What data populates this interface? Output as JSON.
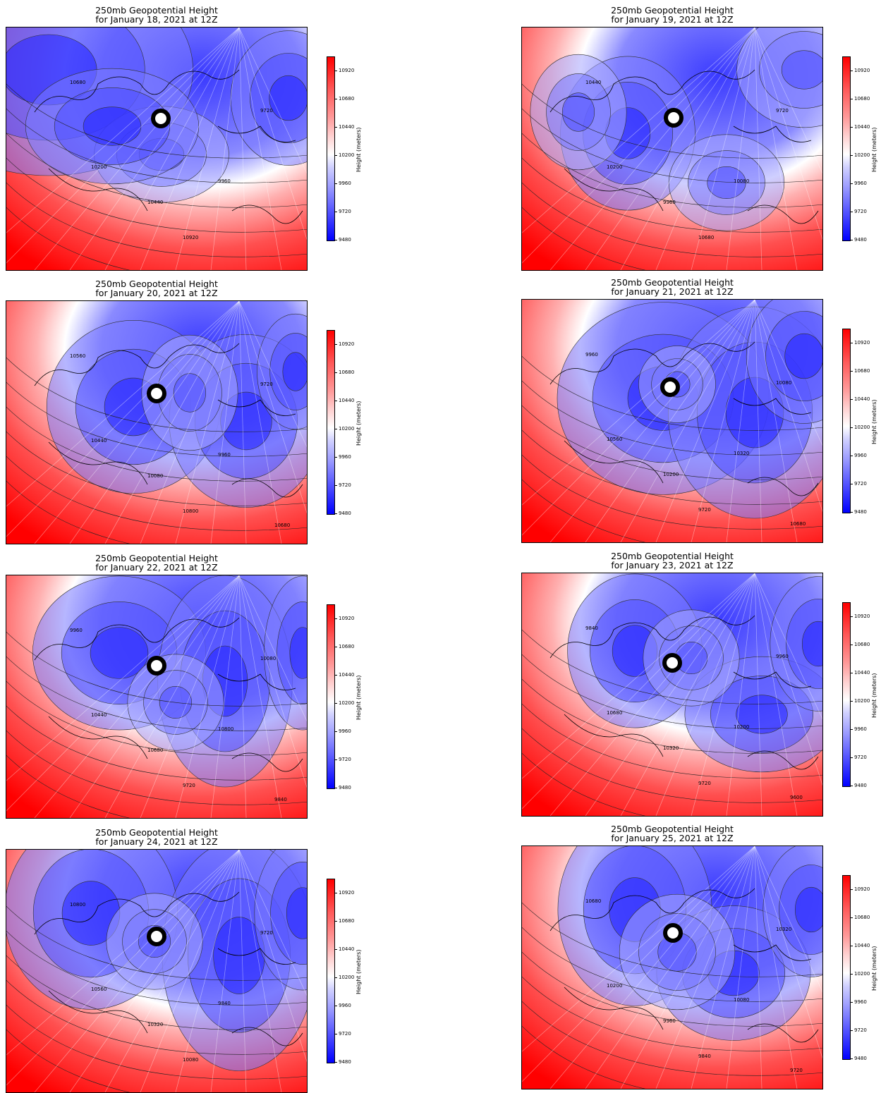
{
  "chart_data": [
    {
      "type": "heatmap",
      "title": "250mb Geopotential Height",
      "subtitle": "for January 18, 2021 at 12Z",
      "colorbar_label": "Height (meters)",
      "colorbar_ticks": [
        10920,
        10680,
        10440,
        10200,
        9960,
        9720,
        9480
      ],
      "contour_labels": [
        "10200",
        "10440",
        "9960",
        "9720",
        "10680",
        "10920"
      ],
      "colors": {
        "low": "#0000ff",
        "mid": "#ffffff",
        "high": "#ff0000"
      }
    },
    {
      "type": "heatmap",
      "title": "250mb Geopotential Height",
      "subtitle": "for January 19, 2021 at 12Z",
      "colorbar_label": "Height (meters)",
      "colorbar_ticks": [
        10920,
        10680,
        10440,
        10200,
        9960,
        9720,
        9480
      ],
      "contour_labels": [
        "10200",
        "9960",
        "10080",
        "9720",
        "10440",
        "10680"
      ],
      "colors": {
        "low": "#0000ff",
        "mid": "#ffffff",
        "high": "#ff0000"
      }
    },
    {
      "type": "heatmap",
      "title": "250mb Geopotential Height",
      "subtitle": "for January 20, 2021 at 12Z",
      "colorbar_label": "Height (meters)",
      "colorbar_ticks": [
        10920,
        10680,
        10440,
        10200,
        9960,
        9720,
        9480
      ],
      "contour_labels": [
        "10440",
        "10080",
        "9960",
        "9720",
        "10560",
        "10800",
        "10680"
      ],
      "colors": {
        "low": "#0000ff",
        "mid": "#ffffff",
        "high": "#ff0000"
      }
    },
    {
      "type": "heatmap",
      "title": "250mb Geopotential Height",
      "subtitle": "for January 21, 2021 at 12Z",
      "colorbar_label": "Height (meters)",
      "colorbar_ticks": [
        10920,
        10680,
        10440,
        10200,
        9960,
        9720,
        9480
      ],
      "contour_labels": [
        "10560",
        "10200",
        "10320",
        "10080",
        "9960",
        "9720",
        "10680"
      ],
      "colors": {
        "low": "#0000ff",
        "mid": "#ffffff",
        "high": "#ff0000"
      }
    },
    {
      "type": "heatmap",
      "title": "250mb Geopotential Height",
      "subtitle": "for January 22, 2021 at 12Z",
      "colorbar_label": "Height (meters)",
      "colorbar_ticks": [
        10920,
        10680,
        10440,
        10200,
        9960,
        9720,
        9480
      ],
      "contour_labels": [
        "10440",
        "10680",
        "10800",
        "10080",
        "9960",
        "9720",
        "9840"
      ],
      "colors": {
        "low": "#0000ff",
        "mid": "#ffffff",
        "high": "#ff0000"
      }
    },
    {
      "type": "heatmap",
      "title": "250mb Geopotential Height",
      "subtitle": "for January 23, 2021 at 12Z",
      "colorbar_label": "Height (meters)",
      "colorbar_ticks": [
        10920,
        10680,
        10440,
        10200,
        9960,
        9720,
        9480
      ],
      "contour_labels": [
        "10680",
        "10320",
        "10200",
        "9960",
        "9840",
        "9720",
        "9600"
      ],
      "colors": {
        "low": "#0000ff",
        "mid": "#ffffff",
        "high": "#ff0000"
      }
    },
    {
      "type": "heatmap",
      "title": "250mb Geopotential Height",
      "subtitle": "for January 24, 2021 at 12Z",
      "colorbar_label": "Height (meters)",
      "colorbar_ticks": [
        10920,
        10680,
        10440,
        10200,
        9960,
        9720,
        9480
      ],
      "contour_labels": [
        "10560",
        "10320",
        "9840",
        "9720",
        "10800",
        "10080"
      ],
      "colors": {
        "low": "#0000ff",
        "mid": "#ffffff",
        "high": "#ff0000"
      }
    },
    {
      "type": "heatmap",
      "title": "250mb Geopotential Height",
      "subtitle": "for January 25, 2021 at 12Z",
      "colorbar_label": "Height (meters)",
      "colorbar_ticks": [
        10920,
        10680,
        10440,
        10200,
        9960,
        9720,
        9480
      ],
      "contour_labels": [
        "10200",
        "9960",
        "10080",
        "10320",
        "10680",
        "9840",
        "9720"
      ],
      "colors": {
        "low": "#0000ff",
        "mid": "#ffffff",
        "high": "#ff0000"
      }
    }
  ]
}
